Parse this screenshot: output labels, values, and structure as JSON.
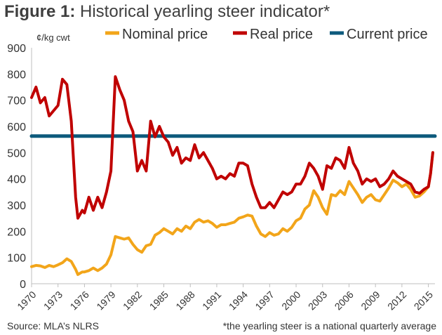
{
  "title": {
    "prefix": "Figure 1:",
    "text": " Historical yearling steer indicator*"
  },
  "footer": {
    "source": "Source: MLA’s NLRS",
    "note": "*the yearling steer is a national quarterly average"
  },
  "chart_data": {
    "type": "line",
    "ylabel": "¢/kg cwt",
    "ylim": [
      0,
      900
    ],
    "yticks": [
      0,
      100,
      200,
      300,
      400,
      500,
      600,
      700,
      800,
      900
    ],
    "xlim": [
      1970,
      2015.75
    ],
    "xticks": [
      "1970",
      "1973",
      "1976",
      "1979",
      "1982",
      "1985",
      "1988",
      "1991",
      "1994",
      "1997",
      "2000",
      "2003",
      "2006",
      "2009",
      "2012",
      "2015"
    ],
    "grid": false,
    "legend_position": "top",
    "series": [
      {
        "name": "Nominal price",
        "color": "#f2a51a",
        "points": [
          [
            1970,
            65
          ],
          [
            1970.5,
            70
          ],
          [
            1971,
            68
          ],
          [
            1971.5,
            62
          ],
          [
            1972,
            70
          ],
          [
            1972.5,
            65
          ],
          [
            1973,
            72
          ],
          [
            1973.5,
            80
          ],
          [
            1974,
            95
          ],
          [
            1974.5,
            85
          ],
          [
            1975,
            55
          ],
          [
            1975.25,
            35
          ],
          [
            1975.75,
            45
          ],
          [
            1976,
            45
          ],
          [
            1976.5,
            50
          ],
          [
            1977,
            60
          ],
          [
            1977.5,
            50
          ],
          [
            1978,
            60
          ],
          [
            1978.5,
            75
          ],
          [
            1979,
            110
          ],
          [
            1979.5,
            180
          ],
          [
            1980,
            175
          ],
          [
            1980.5,
            170
          ],
          [
            1981,
            175
          ],
          [
            1981.5,
            150
          ],
          [
            1982,
            130
          ],
          [
            1982.5,
            120
          ],
          [
            1983,
            145
          ],
          [
            1983.5,
            150
          ],
          [
            1984,
            185
          ],
          [
            1984.5,
            195
          ],
          [
            1985,
            210
          ],
          [
            1985.5,
            200
          ],
          [
            1986,
            190
          ],
          [
            1986.5,
            210
          ],
          [
            1987,
            200
          ],
          [
            1987.5,
            220
          ],
          [
            1988,
            210
          ],
          [
            1988.5,
            235
          ],
          [
            1989,
            245
          ],
          [
            1989.5,
            235
          ],
          [
            1990,
            240
          ],
          [
            1990.5,
            230
          ],
          [
            1991,
            215
          ],
          [
            1991.5,
            225
          ],
          [
            1992,
            225
          ],
          [
            1992.5,
            230
          ],
          [
            1993,
            235
          ],
          [
            1993.5,
            250
          ],
          [
            1994,
            255
          ],
          [
            1994.5,
            262
          ],
          [
            1995,
            258
          ],
          [
            1995.5,
            220
          ],
          [
            1996,
            190
          ],
          [
            1996.5,
            180
          ],
          [
            1997,
            195
          ],
          [
            1997.5,
            185
          ],
          [
            1998,
            190
          ],
          [
            1998.5,
            210
          ],
          [
            1999,
            200
          ],
          [
            1999.5,
            215
          ],
          [
            2000,
            240
          ],
          [
            2000.5,
            250
          ],
          [
            2001,
            285
          ],
          [
            2001.5,
            300
          ],
          [
            2002,
            355
          ],
          [
            2002.5,
            330
          ],
          [
            2003,
            290
          ],
          [
            2003.5,
            265
          ],
          [
            2004,
            340
          ],
          [
            2004.5,
            335
          ],
          [
            2005,
            355
          ],
          [
            2005.5,
            340
          ],
          [
            2006,
            390
          ],
          [
            2006.5,
            365
          ],
          [
            2007,
            340
          ],
          [
            2007.5,
            310
          ],
          [
            2008,
            330
          ],
          [
            2008.5,
            340
          ],
          [
            2009,
            320
          ],
          [
            2009.5,
            315
          ],
          [
            2010,
            340
          ],
          [
            2010.5,
            365
          ],
          [
            2011,
            395
          ],
          [
            2011.5,
            385
          ],
          [
            2012,
            370
          ],
          [
            2012.5,
            380
          ],
          [
            2013,
            360
          ],
          [
            2013.5,
            330
          ],
          [
            2014,
            335
          ],
          [
            2014.5,
            350
          ],
          [
            2015,
            370
          ],
          [
            2015.25,
            420
          ],
          [
            2015.5,
            500
          ]
        ]
      },
      {
        "name": "Real price",
        "color": "#c00000",
        "points": [
          [
            1970,
            710
          ],
          [
            1970.5,
            750
          ],
          [
            1971,
            690
          ],
          [
            1971.5,
            710
          ],
          [
            1972,
            640
          ],
          [
            1972.5,
            660
          ],
          [
            1973,
            680
          ],
          [
            1973.5,
            780
          ],
          [
            1974,
            760
          ],
          [
            1974.5,
            620
          ],
          [
            1975,
            330
          ],
          [
            1975.25,
            250
          ],
          [
            1975.75,
            280
          ],
          [
            1976,
            270
          ],
          [
            1976.5,
            330
          ],
          [
            1977,
            280
          ],
          [
            1977.5,
            330
          ],
          [
            1978,
            290
          ],
          [
            1978.5,
            350
          ],
          [
            1979,
            430
          ],
          [
            1979.5,
            790
          ],
          [
            1980,
            740
          ],
          [
            1980.5,
            700
          ],
          [
            1981,
            620
          ],
          [
            1981.5,
            580
          ],
          [
            1982,
            430
          ],
          [
            1982.5,
            470
          ],
          [
            1983,
            430
          ],
          [
            1983.5,
            620
          ],
          [
            1984,
            560
          ],
          [
            1984.5,
            600
          ],
          [
            1985,
            560
          ],
          [
            1985.5,
            540
          ],
          [
            1986,
            490
          ],
          [
            1986.5,
            520
          ],
          [
            1987,
            460
          ],
          [
            1987.5,
            480
          ],
          [
            1988,
            470
          ],
          [
            1988.5,
            530
          ],
          [
            1989,
            480
          ],
          [
            1989.5,
            500
          ],
          [
            1990,
            470
          ],
          [
            1990.5,
            440
          ],
          [
            1991,
            400
          ],
          [
            1991.5,
            410
          ],
          [
            1992,
            400
          ],
          [
            1992.5,
            420
          ],
          [
            1993,
            410
          ],
          [
            1993.5,
            460
          ],
          [
            1994,
            460
          ],
          [
            1994.5,
            450
          ],
          [
            1995,
            380
          ],
          [
            1995.5,
            330
          ],
          [
            1996,
            290
          ],
          [
            1996.5,
            290
          ],
          [
            1997,
            310
          ],
          [
            1997.5,
            290
          ],
          [
            1998,
            320
          ],
          [
            1998.5,
            350
          ],
          [
            1999,
            340
          ],
          [
            1999.5,
            350
          ],
          [
            2000,
            380
          ],
          [
            2000.5,
            380
          ],
          [
            2001,
            410
          ],
          [
            2001.5,
            460
          ],
          [
            2002,
            440
          ],
          [
            2002.5,
            410
          ],
          [
            2003,
            360
          ],
          [
            2003.5,
            450
          ],
          [
            2004,
            440
          ],
          [
            2004.5,
            480
          ],
          [
            2005,
            470
          ],
          [
            2005.5,
            440
          ],
          [
            2006,
            520
          ],
          [
            2006.5,
            460
          ],
          [
            2007,
            430
          ],
          [
            2007.5,
            380
          ],
          [
            2008,
            400
          ],
          [
            2008.5,
            390
          ],
          [
            2009,
            400
          ],
          [
            2009.5,
            370
          ],
          [
            2010,
            380
          ],
          [
            2010.5,
            400
          ],
          [
            2011,
            430
          ],
          [
            2011.5,
            410
          ],
          [
            2012,
            400
          ],
          [
            2012.5,
            390
          ],
          [
            2013,
            380
          ],
          [
            2013.5,
            350
          ],
          [
            2014,
            345
          ],
          [
            2014.5,
            360
          ],
          [
            2015,
            370
          ],
          [
            2015.25,
            420
          ],
          [
            2015.5,
            500
          ]
        ]
      },
      {
        "name": "Current price",
        "color": "#0d5a7c",
        "points": [
          [
            1970,
            563
          ],
          [
            2015.75,
            563
          ]
        ]
      }
    ]
  }
}
